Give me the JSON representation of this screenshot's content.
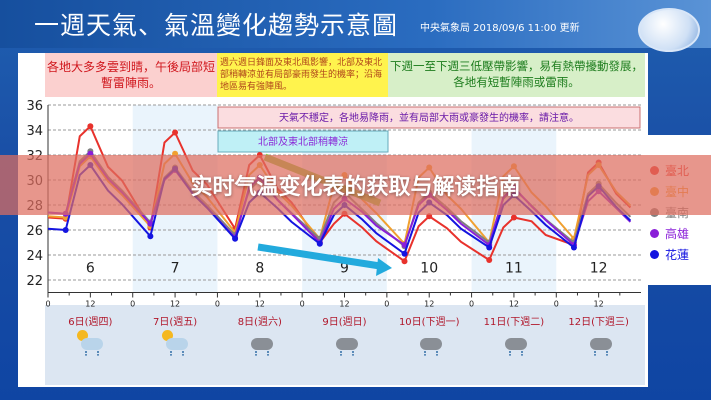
{
  "header": {
    "title": "一週天氣、氣溫變化趨勢示意圖",
    "source": "中央氣象局 2018/09/6 11:00 更新"
  },
  "notes": {
    "n1": "各地大多多雲到晴，午後局部短暫雷陣雨。",
    "n2": "週六週日鋒面及東北風影響，北部及東北部稍轉涼並有局部豪雨發生的機率；沿海地區易有強陣風。",
    "n3": "下週一至下週三低壓帶影響，易有熱帶擾動發展，各地有短暫陣雨或雷雨。",
    "chart_pink": "天氣不穩定，各地易降雨，並有局部大雨或豪發生的機率，請注意。",
    "chart_cyan": "北部及東北部稍轉涼"
  },
  "banner": {
    "text": "实时气温变化表的获取与解读指南"
  },
  "days": [
    {
      "label": "6日(週四)",
      "icon": "sun-cloud-rain-icon"
    },
    {
      "label": "7日(週五)",
      "icon": "sun-cloud-rain-icon"
    },
    {
      "label": "8日(週六)",
      "icon": "rain-cloud-icon"
    },
    {
      "label": "9日(週日)",
      "icon": "rain-cloud-icon"
    },
    {
      "label": "10日(下週一)",
      "icon": "rain-cloud-icon"
    },
    {
      "label": "11日(下週二)",
      "icon": "rain-cloud-icon"
    },
    {
      "label": "12日(下週三)",
      "icon": "rain-cloud-icon"
    }
  ],
  "chart_data": {
    "type": "line",
    "ylim": [
      21,
      36
    ],
    "yticks": [
      22,
      24,
      26,
      28,
      30,
      32,
      34,
      36
    ],
    "day_labels": [
      "6",
      "7",
      "8",
      "9",
      "10",
      "11",
      "12"
    ],
    "xtick_labels": [
      "0",
      "12"
    ],
    "grid": true,
    "legend_placement": "right",
    "series": [
      {
        "name": "臺北",
        "color": "#e8322c",
        "min": [
          26.9,
          26.2,
          26.1,
          25.0,
          23.5,
          23.6,
          24.8
        ],
        "max": [
          34.3,
          33.8,
          32.0,
          27.3,
          27.1,
          27.0,
          31.4
        ]
      },
      {
        "name": "臺中",
        "color": "#f0a030",
        "min": [
          27.0,
          26.3,
          25.8,
          25.3,
          24.9,
          25.0,
          25.3
        ],
        "max": [
          31.9,
          32.1,
          31.2,
          30.4,
          31.0,
          31.1,
          31.2
        ]
      },
      {
        "name": "臺南",
        "color": "#808080",
        "min": [
          27.3,
          26.6,
          25.6,
          25.3,
          24.7,
          25.0,
          25.0
        ],
        "max": [
          32.3,
          31.0,
          30.0,
          29.0,
          29.0,
          29.3,
          29.7
        ]
      },
      {
        "name": "高雄",
        "color": "#8a1fd8",
        "min": [
          27.3,
          26.5,
          25.4,
          25.0,
          24.8,
          24.8,
          24.8
        ],
        "max": [
          32.1,
          30.8,
          30.2,
          28.5,
          28.8,
          29.4,
          29.1
        ]
      },
      {
        "name": "花蓮",
        "color": "#1414e0",
        "min": [
          26.0,
          25.5,
          25.3,
          24.9,
          24.1,
          24.6,
          24.6
        ],
        "max": [
          31.2,
          30.9,
          29.0,
          28.0,
          28.2,
          28.8,
          29.5
        ]
      }
    ]
  }
}
